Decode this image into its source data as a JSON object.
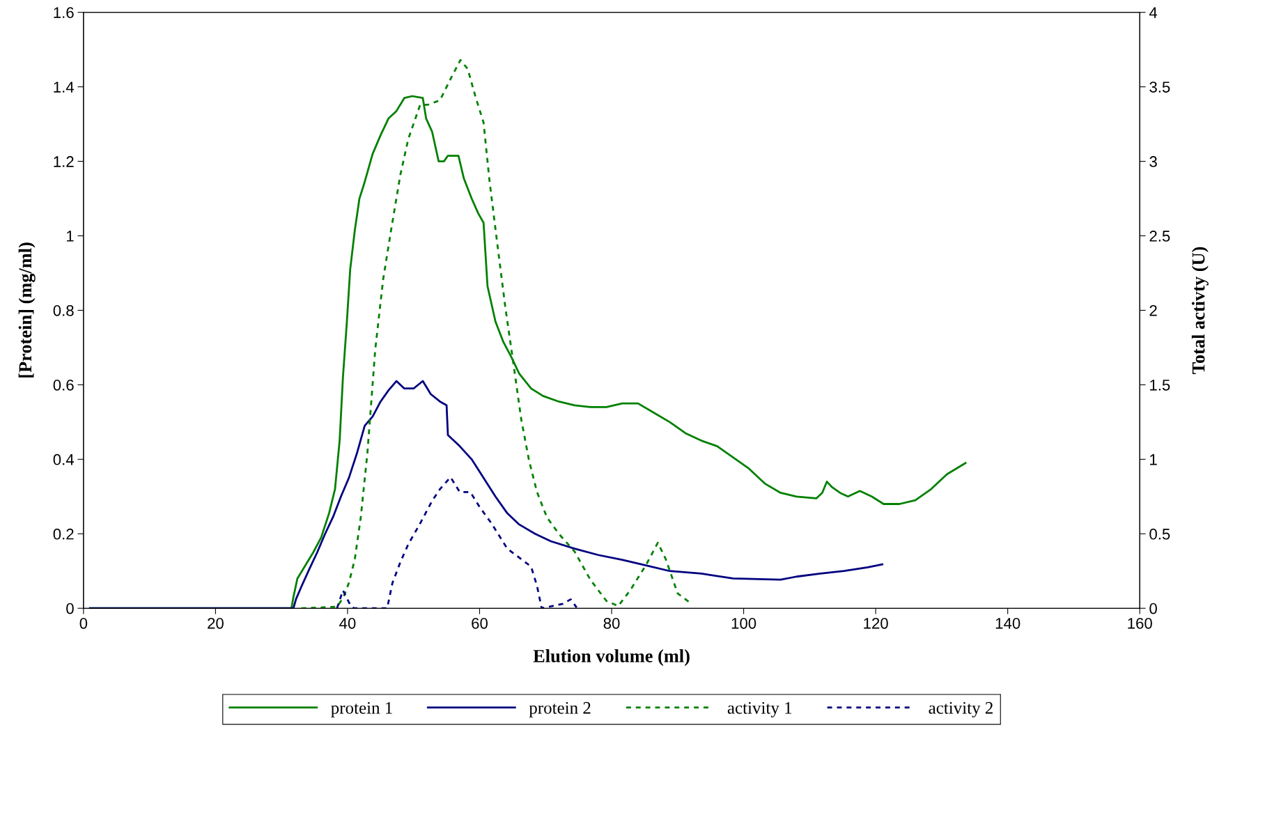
{
  "chart_data": {
    "type": "line",
    "xlabel": "Elution volume (ml)",
    "ylabel": "[Protein] (mg/ml)",
    "y2label": "Total activty (U)",
    "xlim": [
      0,
      160
    ],
    "xticks": [
      0,
      20,
      40,
      60,
      80,
      100,
      120,
      140,
      160
    ],
    "ylim": [
      0,
      1.6
    ],
    "yticks": [
      0,
      0.2,
      0.4,
      0.6,
      0.8,
      1,
      1.2,
      1.4,
      1.6
    ],
    "y2lim": [
      0,
      4
    ],
    "y2ticks": [
      0,
      0.5,
      1,
      1.5,
      2,
      2.5,
      3,
      3.5,
      4
    ],
    "grid": false,
    "legend": "bottom",
    "marker": "none",
    "series": [
      {
        "name": "protein 1",
        "color": "#008000",
        "line_style": "solid",
        "x": [
          1,
          31.5,
          31.8,
          32.4,
          33.6,
          34.8,
          36,
          37.2,
          38.1,
          38.8,
          39.3,
          39.9,
          40.4,
          41.1,
          41.8,
          42.6,
          43.8,
          45,
          46.2,
          47.4,
          48.6,
          49.8,
          51.4,
          51.9,
          52.8,
          53.8,
          54.6,
          55.2,
          56.8,
          57.6,
          58.8,
          59.8,
          60.6,
          61.2,
          62.4,
          63.6,
          64.8,
          66,
          67.8,
          69.6,
          72,
          74.4,
          76.8,
          79.2,
          81.6,
          84,
          86.4,
          88.8,
          91.2,
          93.6,
          96,
          98.4,
          100.8,
          103.2,
          105.6,
          108,
          111,
          111.9,
          112.6,
          113.4,
          114.6,
          115.8,
          117.6,
          119.4,
          121.2,
          123.6,
          126,
          128.4,
          130.8,
          133.6
        ],
        "values": [
          0,
          0,
          0.03,
          0.08,
          0.115,
          0.15,
          0.19,
          0.255,
          0.32,
          0.45,
          0.62,
          0.77,
          0.91,
          1.015,
          1.1,
          1.145,
          1.22,
          1.27,
          1.315,
          1.335,
          1.37,
          1.375,
          1.37,
          1.315,
          1.28,
          1.2,
          1.2,
          1.215,
          1.215,
          1.155,
          1.1,
          1.06,
          1.035,
          0.865,
          0.77,
          0.715,
          0.675,
          0.63,
          0.59,
          0.57,
          0.555,
          0.545,
          0.54,
          0.54,
          0.55,
          0.55,
          0.525,
          0.5,
          0.47,
          0.45,
          0.435,
          0.405,
          0.375,
          0.335,
          0.31,
          0.3,
          0.295,
          0.31,
          0.34,
          0.325,
          0.31,
          0.3,
          0.315,
          0.3,
          0.28,
          0.28,
          0.29,
          0.32,
          0.36,
          0.39
        ]
      },
      {
        "name": "protein 2",
        "color": "#000080",
        "line_style": "solid",
        "x": [
          1,
          31.8,
          32.2,
          33,
          34.2,
          35.4,
          36.6,
          37.8,
          39,
          40.2,
          41.4,
          42.6,
          43.8,
          45,
          46.2,
          47.4,
          48.6,
          50,
          51.4,
          52.6,
          54,
          55,
          55.2,
          57,
          58.8,
          60.6,
          62.4,
          64.2,
          66,
          68.4,
          70.8,
          74.4,
          78,
          81.6,
          85.2,
          88.8,
          93.6,
          98.4,
          105.6,
          108,
          111.6,
          115.2,
          118.8,
          121
        ],
        "values": [
          0,
          0,
          0.025,
          0.058,
          0.105,
          0.15,
          0.2,
          0.245,
          0.3,
          0.35,
          0.415,
          0.49,
          0.515,
          0.555,
          0.585,
          0.61,
          0.59,
          0.59,
          0.61,
          0.575,
          0.555,
          0.545,
          0.465,
          0.435,
          0.4,
          0.35,
          0.3,
          0.255,
          0.225,
          0.2,
          0.18,
          0.16,
          0.143,
          0.13,
          0.115,
          0.1,
          0.093,
          0.08,
          0.077,
          0.085,
          0.093,
          0.1,
          0.11,
          0.118
        ]
      },
      {
        "name": "activity 1",
        "color": "#008000",
        "line_style": "dotted",
        "axis": "y2",
        "x": [
          33,
          38.4,
          39.4,
          40.2,
          41.1,
          42,
          43,
          44.2,
          45.4,
          46.6,
          48,
          49.2,
          51,
          52.2,
          54,
          55.8,
          57.1,
          58.2,
          59.4,
          60.6,
          61.5,
          62.7,
          63.9,
          65.1,
          66.3,
          67.5,
          68.7,
          70.2,
          72,
          74.4,
          76.8,
          79.2,
          81,
          82.8,
          85.2,
          87,
          88.2,
          90,
          91.8
        ],
        "values": [
          0,
          0.01,
          0.075,
          0.17,
          0.33,
          0.61,
          1.04,
          1.74,
          2.21,
          2.54,
          2.91,
          3.15,
          3.38,
          3.38,
          3.41,
          3.57,
          3.68,
          3.62,
          3.43,
          3.26,
          2.87,
          2.44,
          2.02,
          1.65,
          1.27,
          0.99,
          0.78,
          0.61,
          0.5,
          0.38,
          0.19,
          0.05,
          0.015,
          0.12,
          0.29,
          0.44,
          0.33,
          0.1,
          0.04
        ]
      },
      {
        "name": "activity 2",
        "color": "#000080",
        "line_style": "dotted",
        "axis": "y2",
        "x": [
          38.4,
          39.3,
          40.5,
          41,
          46,
          46.8,
          48,
          49.2,
          51,
          52.8,
          54,
          55.6,
          57,
          58.6,
          60,
          61.8,
          64.2,
          66.3,
          67.8,
          68.7,
          69.4,
          72.6,
          73.8,
          74.7
        ],
        "values": [
          0,
          0.12,
          0.015,
          0,
          0,
          0.17,
          0.31,
          0.43,
          0.57,
          0.72,
          0.8,
          0.88,
          0.78,
          0.78,
          0.68,
          0.57,
          0.4,
          0.33,
          0.28,
          0.15,
          0,
          0.03,
          0.06,
          0.005
        ]
      }
    ]
  }
}
